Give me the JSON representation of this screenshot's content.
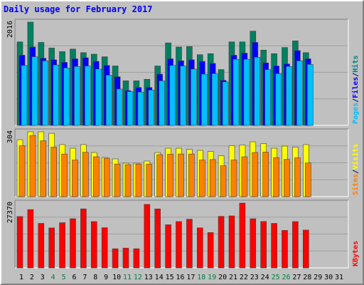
{
  "title": "Daily usage for February 2017",
  "chart_data": [
    {
      "type": "bar",
      "panel": "pages-files-hits",
      "ymax_label": "2016",
      "ymax": 2016,
      "legend": [
        {
          "text": "Pages",
          "color": "#00c0ff"
        },
        {
          "text": "/",
          "color": "#000080"
        },
        {
          "text": "Files",
          "color": "#0000ff"
        },
        {
          "text": "/",
          "color": "#000080"
        },
        {
          "text": "Hits",
          "color": "#008080"
        }
      ],
      "series": [
        {
          "name": "Hits",
          "color": "#008060",
          "values": [
            1630,
            2016,
            1620,
            1510,
            1440,
            1490,
            1420,
            1390,
            1340,
            1160,
            870,
            870,
            900,
            1160,
            1610,
            1530,
            1540,
            1380,
            1400,
            1090,
            1630,
            1630,
            1840,
            1470,
            1400,
            1520,
            1650,
            1420,
            0,
            0,
            0
          ]
        },
        {
          "name": "Files",
          "color": "#0000ff",
          "values": [
            1370,
            1530,
            1310,
            1280,
            1230,
            1300,
            1320,
            1250,
            1170,
            950,
            680,
            740,
            740,
            1000,
            1300,
            1260,
            1280,
            1250,
            1210,
            880,
            1370,
            1410,
            1620,
            1220,
            1160,
            1200,
            1460,
            1300,
            0,
            0,
            0
          ]
        },
        {
          "name": "Pages",
          "color": "#00c0ff",
          "values": [
            1170,
            1340,
            1260,
            1180,
            1120,
            1150,
            1160,
            1100,
            980,
            710,
            660,
            650,
            690,
            870,
            1170,
            1160,
            1100,
            1000,
            1010,
            850,
            1290,
            1290,
            1330,
            1090,
            1010,
            1150,
            1260,
            1190,
            0,
            0,
            0
          ]
        }
      ]
    },
    {
      "type": "bar",
      "panel": "sites-visits",
      "ymax_label": "304",
      "ymax": 304,
      "legend": [
        {
          "text": "Sites",
          "color": "#ff8000"
        },
        {
          "text": "/",
          "color": "#000080"
        },
        {
          "text": "Visits",
          "color": "#ffff00"
        }
      ],
      "series": [
        {
          "name": "Visits",
          "color": "#ffff00",
          "values": [
            267,
            304,
            304,
            297,
            244,
            227,
            244,
            207,
            184,
            177,
            157,
            157,
            167,
            207,
            227,
            227,
            222,
            217,
            212,
            192,
            239,
            242,
            257,
            249,
            227,
            237,
            232,
            244,
            0,
            0,
            0
          ]
        },
        {
          "name": "Sites",
          "color": "#ff8000",
          "values": [
            239,
            287,
            262,
            232,
            200,
            172,
            208,
            187,
            180,
            153,
            150,
            153,
            153,
            197,
            199,
            200,
            200,
            172,
            174,
            145,
            172,
            187,
            207,
            209,
            183,
            175,
            182,
            158,
            0,
            0,
            0
          ]
        }
      ]
    },
    {
      "type": "bar",
      "panel": "kbytes",
      "ymax_label": "27370",
      "ymax": 27370,
      "legend": [
        {
          "text": "KBytes",
          "color": "#ff0000"
        }
      ],
      "series": [
        {
          "name": "KBytes",
          "color": "#ff0000",
          "values": [
            21680,
            24620,
            18800,
            16880,
            19100,
            20760,
            24920,
            19560,
            16970,
            8100,
            8360,
            8100,
            26820,
            24900,
            18220,
            19570,
            20570,
            16900,
            14930,
            21760,
            21960,
            27370,
            20760,
            19600,
            18800,
            15840,
            19560,
            15970,
            0,
            0,
            0
          ]
        }
      ]
    }
  ],
  "x_days": [
    "1",
    "2",
    "3",
    "4",
    "5",
    "6",
    "7",
    "8",
    "9",
    "10",
    "11",
    "12",
    "13",
    "14",
    "15",
    "16",
    "17",
    "18",
    "19",
    "20",
    "21",
    "22",
    "23",
    "24",
    "25",
    "26",
    "27",
    "28",
    "29",
    "30",
    "31"
  ],
  "weekend_days": [
    4,
    5,
    11,
    12,
    18,
    19,
    25,
    26
  ]
}
